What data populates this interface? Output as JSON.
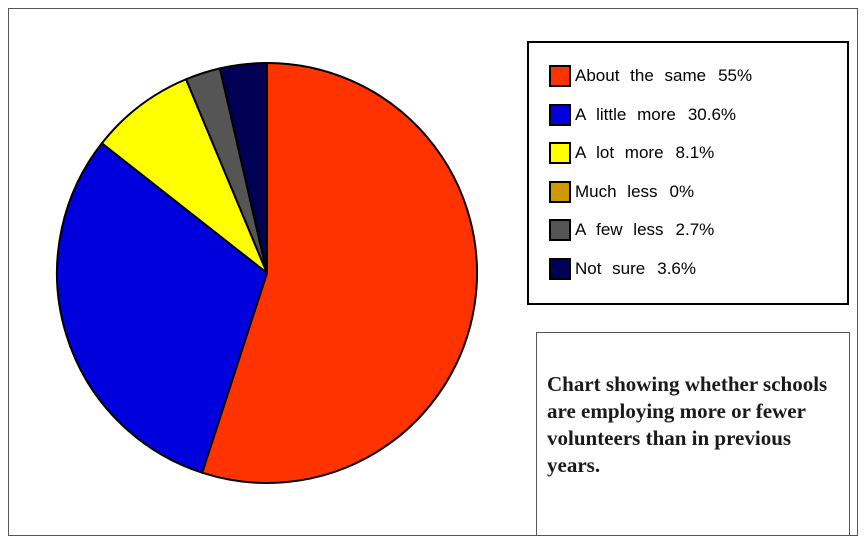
{
  "chart_data": {
    "type": "pie",
    "slices": [
      {
        "label": "About the same",
        "value": 55,
        "value_label": "55%",
        "color": "#ff3300"
      },
      {
        "label": "A little more",
        "value": 30.6,
        "value_label": "30.6%",
        "color": "#0000dd"
      },
      {
        "label": "A lot more",
        "value": 8.1,
        "value_label": "8.1%",
        "color": "#ffff00"
      },
      {
        "label": "Much less",
        "value": 0,
        "value_label": "0%",
        "color": "#cc9900"
      },
      {
        "label": "A few less",
        "value": 2.7,
        "value_label": "2.7%",
        "color": "#555555"
      },
      {
        "label": "Not sure",
        "value": 3.6,
        "value_label": "3.6%",
        "color": "#000055"
      }
    ],
    "legend_position": "right",
    "slice_order": "clockwise from 12 o'clock"
  },
  "caption": "Chart showing whether schools are employing more or fewer volunteers than in previous years."
}
